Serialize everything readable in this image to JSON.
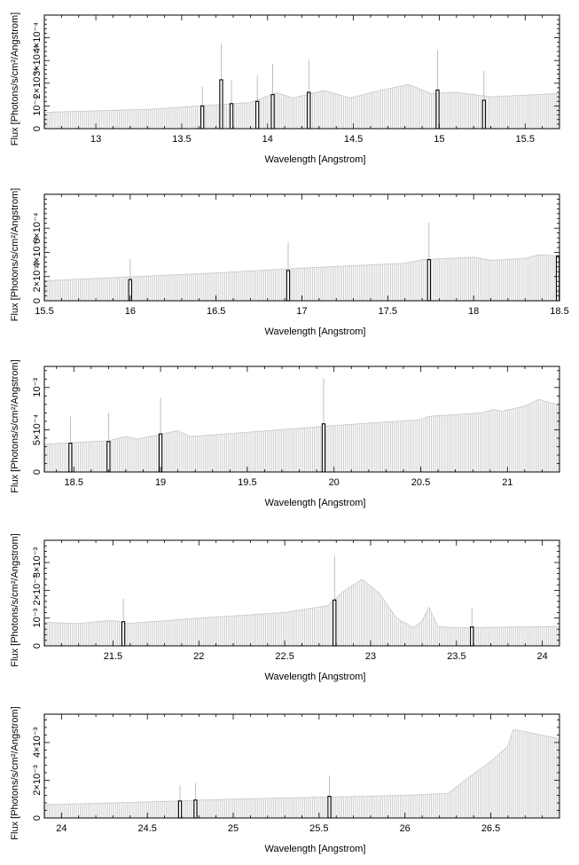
{
  "figure": {
    "ylabel": "Flux [Photons/s/cm²/Angstrom]",
    "xlabel": "Wavelength [Angstrom]"
  },
  "colors": {
    "continuum": "#c8c8c8",
    "line": "#000000",
    "errorbar": "#b0b0b0",
    "axis": "#000000"
  },
  "chart_data": [
    {
      "type": "bar",
      "xlabel": "Wavelength [Angstrom]",
      "ylabel": "Flux [Photons/s/cm²/Angstrom]",
      "xlim": [
        12.7,
        15.7
      ],
      "ylim": [
        0,
        0.0005
      ],
      "xticks": [
        13,
        13.5,
        14,
        14.5,
        15,
        15.5
      ],
      "xtick_labels": [
        "13",
        "13.5",
        "14",
        "14.5",
        "15",
        "15.5"
      ],
      "yticks": [
        0,
        0.0001,
        0.0002,
        0.0003,
        0.0004
      ],
      "ytick_labels": [
        "0",
        "10⁻⁴",
        "2×10⁻⁴",
        "3×10⁻⁴",
        "4×10⁻⁴"
      ],
      "grid": false,
      "continuum": [
        [
          12.7,
          7.2e-05
        ],
        [
          13.3,
          8.5e-05
        ],
        [
          13.9,
          0.000115
        ],
        [
          14.05,
          0.000158
        ],
        [
          14.15,
          0.000135
        ],
        [
          14.33,
          0.000168
        ],
        [
          14.48,
          0.000135
        ],
        [
          14.62,
          0.000162
        ],
        [
          14.82,
          0.000195
        ],
        [
          14.95,
          0.000155
        ],
        [
          15.1,
          0.00016
        ],
        [
          15.3,
          0.00014
        ],
        [
          15.7,
          0.000155
        ]
      ],
      "lines": [
        {
          "x": 13.62,
          "y": 0.0001,
          "err": 0.000185
        },
        {
          "x": 13.73,
          "y": 0.000215,
          "err": 0.000375
        },
        {
          "x": 13.79,
          "y": 0.00011,
          "err": 0.000215
        },
        {
          "x": 13.94,
          "y": 0.00012,
          "err": 0.000235
        },
        {
          "x": 14.03,
          "y": 0.00015,
          "err": 0.000285
        },
        {
          "x": 14.24,
          "y": 0.00016,
          "err": 0.000305
        },
        {
          "x": 14.99,
          "y": 0.00017,
          "err": 0.000345
        },
        {
          "x": 15.26,
          "y": 0.000125,
          "err": 0.000255
        }
      ]
    },
    {
      "type": "bar",
      "xlabel": "Wavelength [Angstrom]",
      "ylabel": "Flux [Photons/s/cm²/Angstrom]",
      "xlim": [
        15.5,
        18.5
      ],
      "ylim": [
        0,
        0.00088
      ],
      "xticks": [
        15.5,
        16,
        16.5,
        17,
        17.5,
        18,
        18.5
      ],
      "xtick_labels": [
        "15.5",
        "16",
        "16.5",
        "17",
        "17.5",
        "18",
        "18.5"
      ],
      "yticks": [
        0,
        0.0002,
        0.0004,
        0.0006
      ],
      "ytick_labels": [
        "0",
        "2×10⁻⁴",
        "4×10⁻⁴",
        "6×10⁻⁴"
      ],
      "grid": false,
      "continuum": [
        [
          15.5,
          0.000165
        ],
        [
          16.5,
          0.00023
        ],
        [
          17.0,
          0.00027
        ],
        [
          17.6,
          0.00031
        ],
        [
          17.7,
          0.00034
        ],
        [
          18.0,
          0.00036
        ],
        [
          18.1,
          0.000335
        ],
        [
          18.3,
          0.00035
        ],
        [
          18.38,
          0.00038
        ],
        [
          18.5,
          0.00037
        ]
      ],
      "lines": [
        {
          "x": 16.0,
          "y": 0.000175,
          "err": 0.000345
        },
        {
          "x": 16.92,
          "y": 0.00025,
          "err": 0.00048
        },
        {
          "x": 17.74,
          "y": 0.00034,
          "err": 0.000645
        },
        {
          "x": 18.49,
          "y": 0.00037,
          "err": 0.00037
        }
      ]
    },
    {
      "type": "bar",
      "xlabel": "Wavelength [Angstrom]",
      "ylabel": "Flux [Photons/s/cm²/Angstrom]",
      "xlim": [
        18.33,
        21.3
      ],
      "ylim": [
        0,
        0.00125
      ],
      "xticks": [
        18.5,
        19,
        19.5,
        20,
        20.5,
        21
      ],
      "xtick_labels": [
        "18.5",
        "19",
        "19.5",
        "20",
        "20.5",
        "21"
      ],
      "yticks": [
        0,
        0.0005,
        0.001
      ],
      "ytick_labels": [
        "0",
        "5×10⁻⁴",
        "10⁻³"
      ],
      "grid": false,
      "continuum": [
        [
          18.33,
          0.00033
        ],
        [
          18.7,
          0.00037
        ],
        [
          18.8,
          0.00042
        ],
        [
          18.87,
          0.00039
        ],
        [
          19.1,
          0.00049
        ],
        [
          19.17,
          0.00042
        ],
        [
          19.5,
          0.00047
        ],
        [
          20.0,
          0.00055
        ],
        [
          20.5,
          0.00062
        ],
        [
          20.55,
          0.00066
        ],
        [
          20.85,
          0.0007
        ],
        [
          20.92,
          0.00074
        ],
        [
          20.97,
          0.00072
        ],
        [
          21.1,
          0.00078
        ],
        [
          21.18,
          0.00086
        ],
        [
          21.3,
          0.00079
        ]
      ],
      "lines": [
        {
          "x": 18.48,
          "y": 0.00034,
          "err": 0.00066
        },
        {
          "x": 18.7,
          "y": 0.00036,
          "err": 0.0007
        },
        {
          "x": 19.0,
          "y": 0.00045,
          "err": 0.00088
        },
        {
          "x": 19.94,
          "y": 0.00057,
          "err": 0.00111
        }
      ]
    },
    {
      "type": "bar",
      "xlabel": "Wavelength [Angstrom]",
      "ylabel": "Flux [Photons/s/cm²/Angstrom]",
      "xlim": [
        21.1,
        24.1
      ],
      "ylim": [
        0,
        0.0038
      ],
      "xticks": [
        21.5,
        22,
        22.5,
        23,
        23.5,
        24
      ],
      "xtick_labels": [
        "21.5",
        "22",
        "22.5",
        "23",
        "23.5",
        "24"
      ],
      "yticks": [
        0,
        0.001,
        0.002,
        0.003
      ],
      "ytick_labels": [
        "0",
        "10⁻³",
        "2×10⁻³",
        "3×10⁻³"
      ],
      "grid": false,
      "continuum": [
        [
          21.1,
          0.00085
        ],
        [
          21.3,
          0.0008
        ],
        [
          21.45,
          0.0009
        ],
        [
          21.52,
          0.0009
        ],
        [
          21.57,
          0.0008
        ],
        [
          22.0,
          0.001
        ],
        [
          22.5,
          0.0012
        ],
        [
          22.75,
          0.00145
        ],
        [
          22.85,
          0.002
        ],
        [
          22.95,
          0.0024
        ],
        [
          23.05,
          0.0019
        ],
        [
          23.15,
          0.001
        ],
        [
          23.25,
          0.00065
        ],
        [
          23.3,
          0.0009
        ],
        [
          23.34,
          0.0014
        ],
        [
          23.39,
          0.0007
        ],
        [
          23.5,
          0.00065
        ],
        [
          24.1,
          0.0007
        ]
      ],
      "lines": [
        {
          "x": 21.56,
          "y": 0.00087,
          "err": 0.0017
        },
        {
          "x": 22.79,
          "y": 0.00165,
          "err": 0.00325
        },
        {
          "x": 23.59,
          "y": 0.00068,
          "err": 0.00135
        }
      ]
    },
    {
      "type": "bar",
      "xlabel": "Wavelength [Angstrom]",
      "ylabel": "Flux [Photons/s/cm²/Angstrom]",
      "xlim": [
        23.9,
        26.9
      ],
      "ylim": [
        0,
        0.0055
      ],
      "xticks": [
        24,
        24.5,
        25,
        25.5,
        26,
        26.5
      ],
      "xtick_labels": [
        "24",
        "24.5",
        "25",
        "25.5",
        "26",
        "26.5"
      ],
      "yticks": [
        0,
        0.002,
        0.004
      ],
      "ytick_labels": [
        "0",
        "2×10⁻³",
        "4×10⁻³"
      ],
      "grid": false,
      "continuum": [
        [
          23.9,
          0.0007
        ],
        [
          24.5,
          0.00085
        ],
        [
          25.0,
          0.001
        ],
        [
          25.5,
          0.0011
        ],
        [
          26.0,
          0.0012
        ],
        [
          26.25,
          0.0013
        ],
        [
          26.35,
          0.002
        ],
        [
          26.5,
          0.003
        ],
        [
          26.6,
          0.0038
        ],
        [
          26.63,
          0.0047
        ],
        [
          26.9,
          0.0042
        ]
      ],
      "lines": [
        {
          "x": 24.69,
          "y": 0.0009,
          "err": 0.00175
        },
        {
          "x": 24.78,
          "y": 0.00095,
          "err": 0.00185
        },
        {
          "x": 25.56,
          "y": 0.00115,
          "err": 0.00225
        }
      ]
    }
  ]
}
